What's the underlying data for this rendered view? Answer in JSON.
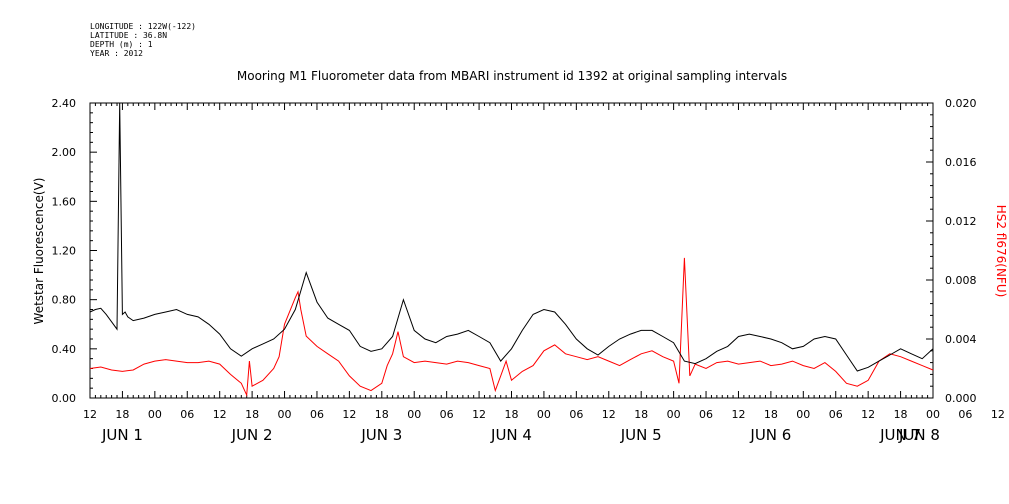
{
  "meta": {
    "longitude": "LONGITUDE : 122W(-122)",
    "latitude": "LATITUDE : 36.8N",
    "depth": "DEPTH (m) : 1",
    "year": "YEAR : 2012"
  },
  "chart_data": {
    "type": "line",
    "title": "Mooring M1 Fluorometer data from MBARI instrument id 1392 at original sampling intervals",
    "ylabel_left": "Wetstar Fluorescence(V)",
    "ylabel_right": "HS2 fl676(NFU)",
    "ylim_left": [
      0,
      2.4
    ],
    "ylim_right": [
      0,
      0.02
    ],
    "yticks_left": [
      "0.00",
      "0.40",
      "0.80",
      "1.20",
      "1.60",
      "2.00",
      "2.40"
    ],
    "yticks_right": [
      "0.000",
      "0.004",
      "0.008",
      "0.012",
      "0.016",
      "0.020"
    ],
    "xlim_hours": [
      12,
      168
    ],
    "xtick_labels": [
      "12",
      "18",
      "00",
      "06",
      "12",
      "18",
      "00",
      "06",
      "12",
      "18",
      "00",
      "06",
      "12",
      "18",
      "00",
      "06",
      "12",
      "18",
      "00",
      "06",
      "12",
      "18",
      "00",
      "06",
      "12",
      "18",
      "00",
      "06",
      "12"
    ],
    "day_labels": [
      "JUN  1",
      "JUN  2",
      "JUN  3",
      "JUN  4",
      "JUN  5",
      "JUN  6",
      "JUN  7",
      "JUN  8"
    ],
    "colors": {
      "wetstar": "#000000",
      "hs2": "#ff0000"
    },
    "series": [
      {
        "name": "Wetstar Fluorescence(V)",
        "axis": "left",
        "x": [
          12,
          13,
          14,
          15,
          16,
          17,
          17.5,
          18,
          18.5,
          19,
          20,
          22,
          24,
          26,
          28,
          30,
          32,
          34,
          36,
          38,
          40,
          42,
          44,
          46,
          48,
          50,
          52,
          54,
          56,
          58,
          60,
          62,
          64,
          66,
          68,
          70,
          72,
          74,
          76,
          78,
          80,
          82,
          84,
          86,
          88,
          90,
          92,
          94,
          96,
          98,
          100,
          102,
          104,
          106,
          108,
          110,
          112,
          114,
          116,
          118,
          120,
          122,
          124,
          126,
          128,
          130,
          132,
          134,
          136,
          138,
          140,
          142,
          144,
          146,
          148,
          150,
          152,
          154,
          156,
          158,
          160,
          162,
          164,
          166,
          168
        ],
        "y": [
          0.7,
          0.72,
          0.73,
          0.68,
          0.62,
          0.56,
          2.4,
          0.68,
          0.7,
          0.66,
          0.63,
          0.65,
          0.68,
          0.7,
          0.72,
          0.68,
          0.66,
          0.6,
          0.52,
          0.4,
          0.34,
          0.4,
          0.44,
          0.48,
          0.56,
          0.72,
          1.02,
          0.78,
          0.65,
          0.6,
          0.55,
          0.42,
          0.38,
          0.4,
          0.5,
          0.8,
          0.55,
          0.48,
          0.45,
          0.5,
          0.52,
          0.55,
          0.5,
          0.45,
          0.3,
          0.4,
          0.55,
          0.68,
          0.72,
          0.7,
          0.6,
          0.48,
          0.4,
          0.35,
          0.42,
          0.48,
          0.52,
          0.55,
          0.55,
          0.5,
          0.45,
          0.3,
          0.28,
          0.32,
          0.38,
          0.42,
          0.5,
          0.52,
          0.5,
          0.48,
          0.45,
          0.4,
          0.42,
          0.48,
          0.5,
          0.48,
          0.35,
          0.22,
          0.25,
          0.3,
          0.35,
          0.4,
          0.36,
          0.32,
          0.4
        ]
      },
      {
        "name": "HS2 fl676(NFU)",
        "axis": "right",
        "x": [
          12,
          14,
          16,
          18,
          20,
          22,
          24,
          26,
          28,
          30,
          32,
          34,
          36,
          38,
          40,
          41,
          41.5,
          42,
          44,
          46,
          47,
          48,
          50,
          50.5,
          51,
          52,
          54,
          56,
          58,
          60,
          62,
          64,
          66,
          67,
          68,
          69,
          70,
          72,
          74,
          76,
          78,
          80,
          82,
          84,
          86,
          87,
          88,
          89,
          90,
          92,
          94,
          96,
          98,
          100,
          102,
          104,
          106,
          108,
          110,
          112,
          114,
          116,
          118,
          120,
          121,
          122,
          123,
          124,
          126,
          128,
          130,
          132,
          134,
          136,
          138,
          140,
          142,
          144,
          146,
          148,
          150,
          152,
          154,
          156,
          158,
          160,
          162,
          164,
          166,
          168
        ],
        "y": [
          0.002,
          0.0021,
          0.0019,
          0.0018,
          0.0019,
          0.0023,
          0.0025,
          0.0026,
          0.0025,
          0.0024,
          0.0024,
          0.0025,
          0.0023,
          0.0016,
          0.001,
          0.0002,
          0.0025,
          0.0008,
          0.0012,
          0.002,
          0.0028,
          0.005,
          0.0068,
          0.0072,
          0.006,
          0.0042,
          0.0035,
          0.003,
          0.0025,
          0.0015,
          0.0008,
          0.0005,
          0.001,
          0.0022,
          0.003,
          0.0045,
          0.0028,
          0.0024,
          0.0025,
          0.0024,
          0.0023,
          0.0025,
          0.0024,
          0.0022,
          0.002,
          0.0005,
          0.0015,
          0.0025,
          0.0012,
          0.0018,
          0.0022,
          0.0032,
          0.0036,
          0.003,
          0.0028,
          0.0026,
          0.0028,
          0.0025,
          0.0022,
          0.0026,
          0.003,
          0.0032,
          0.0028,
          0.0025,
          0.001,
          0.0095,
          0.0015,
          0.0023,
          0.002,
          0.0024,
          0.0025,
          0.0023,
          0.0024,
          0.0025,
          0.0022,
          0.0023,
          0.0025,
          0.0022,
          0.002,
          0.0024,
          0.0018,
          0.001,
          0.0008,
          0.0012,
          0.0025,
          0.003,
          0.0028,
          0.0025,
          0.0022,
          0.0019
        ]
      }
    ]
  }
}
